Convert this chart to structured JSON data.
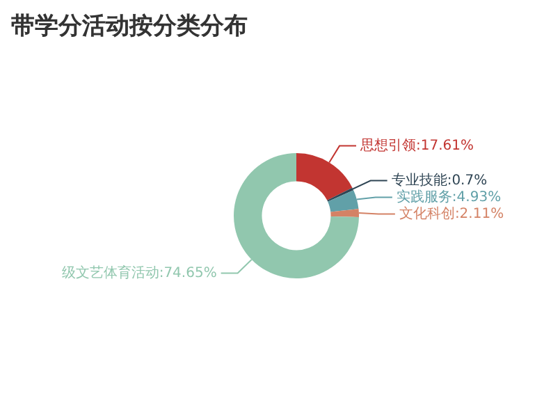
{
  "chart_data": {
    "type": "donut",
    "title": "带学分活动按分类分布",
    "categories": [
      "思想引领",
      "专业技能",
      "实践服务",
      "文化科创",
      "级文艺体育活动"
    ],
    "values": [
      17.61,
      0.7,
      4.93,
      2.11,
      74.65
    ],
    "colors": [
      "#c23531",
      "#2f4554",
      "#61a0a8",
      "#d48265",
      "#91c7ae"
    ],
    "value_labels": [
      ":17.61%",
      ":0.7%",
      ":4.93%",
      ":2.11%",
      ":74.65%"
    ],
    "legend": false
  }
}
